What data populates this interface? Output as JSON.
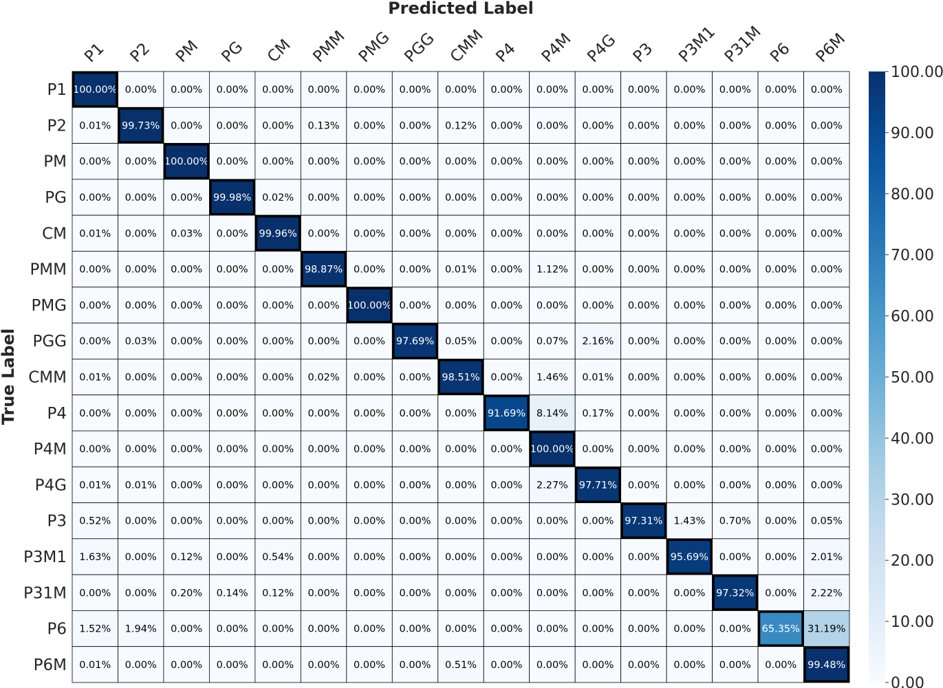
{
  "chart_data": {
    "type": "heatmap",
    "xlabel": "Predicted Label",
    "ylabel": "True Label",
    "labels": [
      "P1",
      "P2",
      "PM",
      "PG",
      "CM",
      "PMM",
      "PMG",
      "PGG",
      "CMM",
      "P4",
      "P4M",
      "P4G",
      "P3",
      "P3M1",
      "P31M",
      "P6",
      "P6M"
    ],
    "values": [
      [
        100.0,
        0.0,
        0.0,
        0.0,
        0.0,
        0.0,
        0.0,
        0.0,
        0.0,
        0.0,
        0.0,
        0.0,
        0.0,
        0.0,
        0.0,
        0.0,
        0.0
      ],
      [
        0.01,
        99.73,
        0.0,
        0.0,
        0.0,
        0.13,
        0.0,
        0.0,
        0.12,
        0.0,
        0.0,
        0.0,
        0.0,
        0.0,
        0.0,
        0.0,
        0.0
      ],
      [
        0.0,
        0.0,
        100.0,
        0.0,
        0.0,
        0.0,
        0.0,
        0.0,
        0.0,
        0.0,
        0.0,
        0.0,
        0.0,
        0.0,
        0.0,
        0.0,
        0.0
      ],
      [
        0.0,
        0.0,
        0.0,
        99.98,
        0.02,
        0.0,
        0.0,
        0.0,
        0.0,
        0.0,
        0.0,
        0.0,
        0.0,
        0.0,
        0.0,
        0.0,
        0.0
      ],
      [
        0.01,
        0.0,
        0.03,
        0.0,
        99.96,
        0.0,
        0.0,
        0.0,
        0.0,
        0.0,
        0.0,
        0.0,
        0.0,
        0.0,
        0.0,
        0.0,
        0.0
      ],
      [
        0.0,
        0.0,
        0.0,
        0.0,
        0.0,
        98.87,
        0.0,
        0.0,
        0.01,
        0.0,
        1.12,
        0.0,
        0.0,
        0.0,
        0.0,
        0.0,
        0.0
      ],
      [
        0.0,
        0.0,
        0.0,
        0.0,
        0.0,
        0.0,
        100.0,
        0.0,
        0.0,
        0.0,
        0.0,
        0.0,
        0.0,
        0.0,
        0.0,
        0.0,
        0.0
      ],
      [
        0.0,
        0.03,
        0.0,
        0.0,
        0.0,
        0.0,
        0.0,
        97.69,
        0.05,
        0.0,
        0.07,
        2.16,
        0.0,
        0.0,
        0.0,
        0.0,
        0.0
      ],
      [
        0.01,
        0.0,
        0.0,
        0.0,
        0.0,
        0.02,
        0.0,
        0.0,
        98.51,
        0.0,
        1.46,
        0.01,
        0.0,
        0.0,
        0.0,
        0.0,
        0.0
      ],
      [
        0.0,
        0.0,
        0.0,
        0.0,
        0.0,
        0.0,
        0.0,
        0.0,
        0.0,
        91.69,
        8.14,
        0.17,
        0.0,
        0.0,
        0.0,
        0.0,
        0.0
      ],
      [
        0.0,
        0.0,
        0.0,
        0.0,
        0.0,
        0.0,
        0.0,
        0.0,
        0.0,
        0.0,
        100.0,
        0.0,
        0.0,
        0.0,
        0.0,
        0.0,
        0.0
      ],
      [
        0.01,
        0.01,
        0.0,
        0.0,
        0.0,
        0.0,
        0.0,
        0.0,
        0.0,
        0.0,
        2.27,
        97.71,
        0.0,
        0.0,
        0.0,
        0.0,
        0.0
      ],
      [
        0.52,
        0.0,
        0.0,
        0.0,
        0.0,
        0.0,
        0.0,
        0.0,
        0.0,
        0.0,
        0.0,
        0.0,
        97.31,
        1.43,
        0.7,
        0.0,
        0.05
      ],
      [
        1.63,
        0.0,
        0.12,
        0.0,
        0.54,
        0.0,
        0.0,
        0.0,
        0.0,
        0.0,
        0.0,
        0.0,
        0.0,
        95.69,
        0.0,
        0.0,
        2.01
      ],
      [
        0.0,
        0.0,
        0.2,
        0.14,
        0.12,
        0.0,
        0.0,
        0.0,
        0.0,
        0.0,
        0.0,
        0.0,
        0.0,
        0.0,
        97.32,
        0.0,
        2.22
      ],
      [
        1.52,
        1.94,
        0.0,
        0.0,
        0.0,
        0.0,
        0.0,
        0.0,
        0.0,
        0.0,
        0.0,
        0.0,
        0.0,
        0.0,
        0.0,
        65.35,
        31.19
      ],
      [
        0.01,
        0.0,
        0.0,
        0.0,
        0.0,
        0.0,
        0.0,
        0.0,
        0.51,
        0.0,
        0.0,
        0.0,
        0.0,
        0.0,
        0.0,
        0.0,
        99.48
      ]
    ],
    "value_suffix": "%",
    "colorbar": {
      "min": 0,
      "max": 100,
      "ticks": [
        "0.00",
        "10.00",
        "20.00",
        "30.00",
        "40.00",
        "50.00",
        "60.00",
        "70.00",
        "80.00",
        "90.00",
        "100.00"
      ],
      "colormap": "Blues"
    },
    "diagonal_highlight": true,
    "grid": true
  }
}
